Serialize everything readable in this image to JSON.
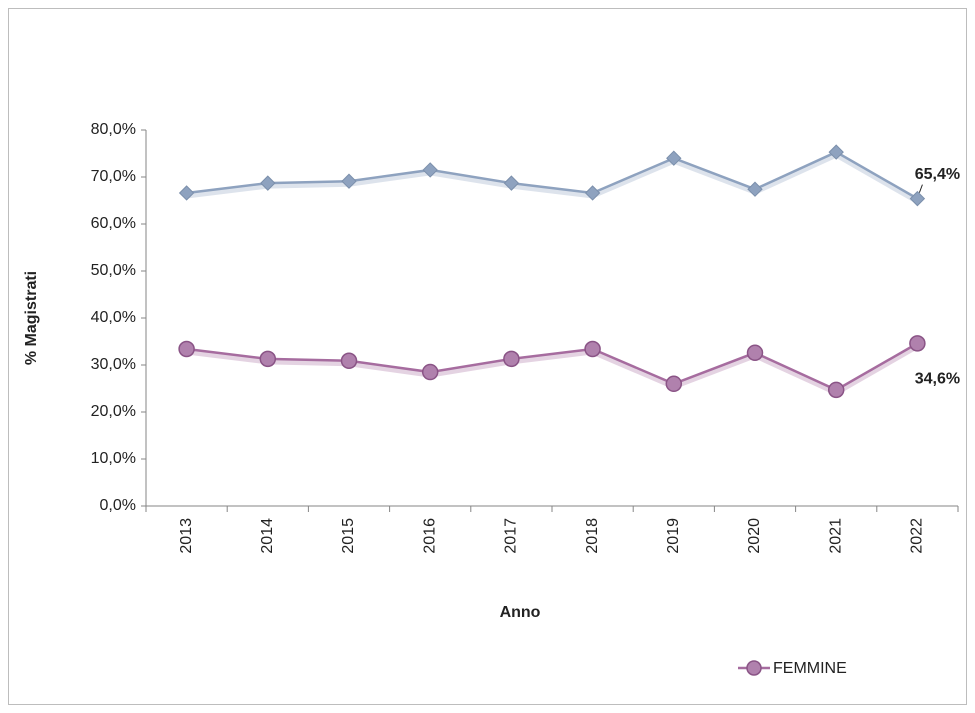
{
  "chart_data": {
    "type": "line",
    "categories": [
      "2013",
      "2014",
      "2015",
      "2016",
      "2017",
      "2018",
      "2019",
      "2020",
      "2021",
      "2022"
    ],
    "series": [
      {
        "color": "#8ea2bf",
        "marker": "diamond",
        "values": [
          66.6,
          68.7,
          69.1,
          71.5,
          68.7,
          66.6,
          74.0,
          67.4,
          75.3,
          65.4
        ],
        "value_labels": [
          null,
          null,
          null,
          null,
          null,
          null,
          null,
          null,
          null,
          "65,4%"
        ]
      },
      {
        "name": "FEMMINE",
        "color": "#a66c9f",
        "marker": "circle",
        "values": [
          33.4,
          31.3,
          30.9,
          28.5,
          31.3,
          33.4,
          26.0,
          32.6,
          24.7,
          34.6
        ],
        "value_labels": [
          null,
          null,
          null,
          null,
          null,
          null,
          null,
          null,
          null,
          "34,6%"
        ]
      }
    ],
    "xlabel": "Anno",
    "ylabel": "% Magistrati",
    "ylim": [
      0,
      80
    ],
    "yticks": [
      {
        "value": 0,
        "label": "0,0%"
      },
      {
        "value": 10,
        "label": "10,0%"
      },
      {
        "value": 20,
        "label": "20,0%"
      },
      {
        "value": 30,
        "label": "30,0%"
      },
      {
        "value": 40,
        "label": "40,0%"
      },
      {
        "value": 50,
        "label": "50,0%"
      },
      {
        "value": 60,
        "label": "60,0%"
      },
      {
        "value": 70,
        "label": "70,0%"
      },
      {
        "value": 80,
        "label": "80,0%"
      }
    ],
    "legend": "bottom-right"
  }
}
